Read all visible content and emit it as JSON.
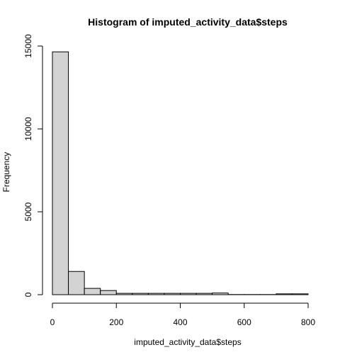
{
  "chart_data": {
    "type": "histogram",
    "title": "Histogram of imputed_activity_data$steps",
    "xlabel": "imputed_activity_data$steps",
    "ylabel": "Frequency",
    "bin_edges": [
      0,
      50,
      100,
      150,
      200,
      250,
      300,
      350,
      400,
      450,
      500,
      550,
      600,
      650,
      700,
      750,
      800
    ],
    "counts": [
      14650,
      1400,
      380,
      250,
      80,
      80,
      80,
      80,
      80,
      80,
      100,
      10,
      10,
      10,
      50,
      50
    ],
    "xlim": [
      0,
      800
    ],
    "ylim": [
      0,
      15000
    ],
    "xticks": [
      0,
      200,
      400,
      600,
      800
    ],
    "yticks": [
      0,
      5000,
      10000,
      15000
    ],
    "colors": {
      "bar_fill": "#d3d3d3",
      "bar_stroke": "#000000"
    }
  }
}
